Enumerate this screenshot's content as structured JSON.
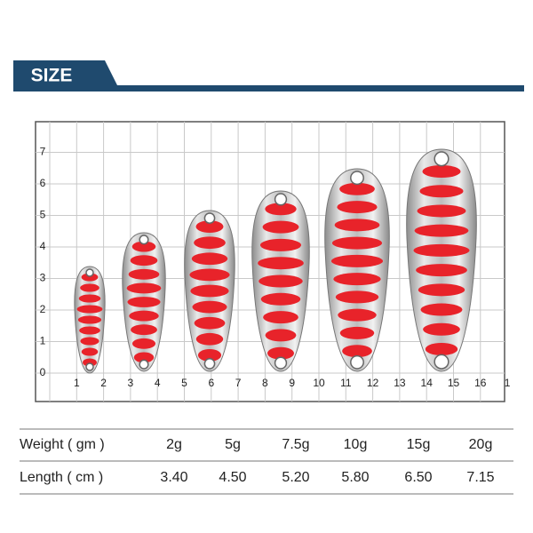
{
  "header": {
    "title": "SIZE"
  },
  "grid": {
    "y_labels": [
      "0",
      "1",
      "2",
      "3",
      "4",
      "5",
      "6",
      "7"
    ],
    "x_labels": [
      "1",
      "2",
      "3",
      "4",
      "5",
      "6",
      "7",
      "8",
      "9",
      "10",
      "11",
      "12",
      "13",
      "14",
      "15",
      "16",
      "1"
    ]
  },
  "table": {
    "rows": [
      [
        "Weight ( gm )",
        "2g",
        "5g",
        "7.5g",
        "10g",
        "15g",
        "20g"
      ],
      [
        "Length ( cm )",
        "3.40",
        "4.50",
        "5.20",
        "5.80",
        "6.50",
        "7.15"
      ]
    ]
  }
}
